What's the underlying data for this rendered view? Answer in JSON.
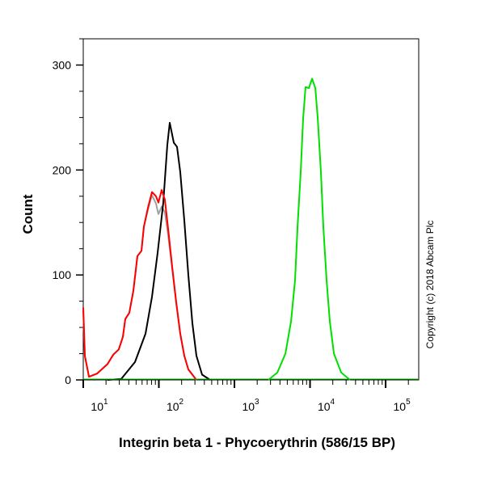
{
  "chart_data": {
    "type": "line",
    "title": "",
    "xlabel": "Integrin beta 1 - Phycoerythrin (586/15 BP)",
    "ylabel": "Count",
    "xscale": "log",
    "xlim": [
      10,
      274000
    ],
    "ylim": [
      0,
      325
    ],
    "grid": false,
    "legend": "none",
    "x_ticks": [
      {
        "base": "10",
        "exp": "1",
        "value": 10
      },
      {
        "base": "10",
        "exp": "2",
        "value": 100
      },
      {
        "base": "10",
        "exp": "3",
        "value": 1000
      },
      {
        "base": "10",
        "exp": "4",
        "value": 10000
      },
      {
        "base": "10",
        "exp": "5",
        "value": 100000
      }
    ],
    "y_ticks": [
      0,
      100,
      200,
      300
    ],
    "annotation": "Copyright (c) 2018 Abcam Plc",
    "series": [
      {
        "color": "#a0a0a0",
        "x": [
          10,
          10.5,
          11.9,
          15.2,
          20.9,
          24.9,
          29.5,
          33.4,
          36,
          40.7,
          46,
          52.1,
          58.9,
          63.4,
          71.7,
          81.1,
          91.8,
          98.8,
          108.9,
          120,
          132.8,
          150,
          169.8,
          192,
          217,
          245.6,
          314
        ],
        "y": [
          66,
          22,
          3,
          6,
          15,
          24,
          29,
          41,
          58,
          64,
          85,
          118,
          123,
          146,
          162,
          176,
          168,
          158,
          165,
          160,
          138,
          106,
          73,
          44,
          23,
          10,
          0
        ]
      },
      {
        "color": "#000000",
        "x": [
          20.9,
          31.8,
          48.3,
          66.6,
          81.1,
          96.4,
          114.5,
          129.5,
          139.4,
          157.8,
          174.1,
          192,
          217,
          245.6,
          278,
          314,
          373,
          477
        ],
        "y": [
          0,
          1,
          17,
          44,
          79,
          121,
          169,
          224,
          245,
          226,
          222,
          198,
          152,
          100,
          54,
          23,
          5,
          0
        ]
      },
      {
        "color": "#ff0000",
        "x": [
          10,
          10.5,
          11.9,
          15.2,
          20.9,
          24.9,
          29.5,
          33.4,
          36,
          40.7,
          46,
          52.1,
          58.9,
          63.4,
          71.7,
          81.1,
          91.8,
          98.8,
          108.9,
          120,
          132.8,
          150,
          169.8,
          192,
          217,
          245.6,
          314
        ],
        "y": [
          69,
          23,
          3,
          6,
          15,
          24,
          29,
          41,
          58,
          64,
          85,
          118,
          123,
          146,
          164,
          179,
          175,
          169,
          181,
          172,
          144,
          108,
          74,
          44,
          23,
          10,
          0
        ]
      },
      {
        "color": "#00e000",
        "x": [
          2810,
          3690,
          4720,
          5610,
          6340,
          6830,
          7530,
          8110,
          8730,
          9640,
          10640,
          11750,
          12650,
          13940,
          15010,
          16560,
          18280,
          20700,
          25820,
          33830
        ],
        "y": [
          0,
          7,
          25,
          56,
          95,
          146,
          198,
          249,
          279,
          278,
          287,
          278,
          249,
          198,
          146,
          95,
          56,
          25,
          7,
          0
        ]
      }
    ]
  }
}
